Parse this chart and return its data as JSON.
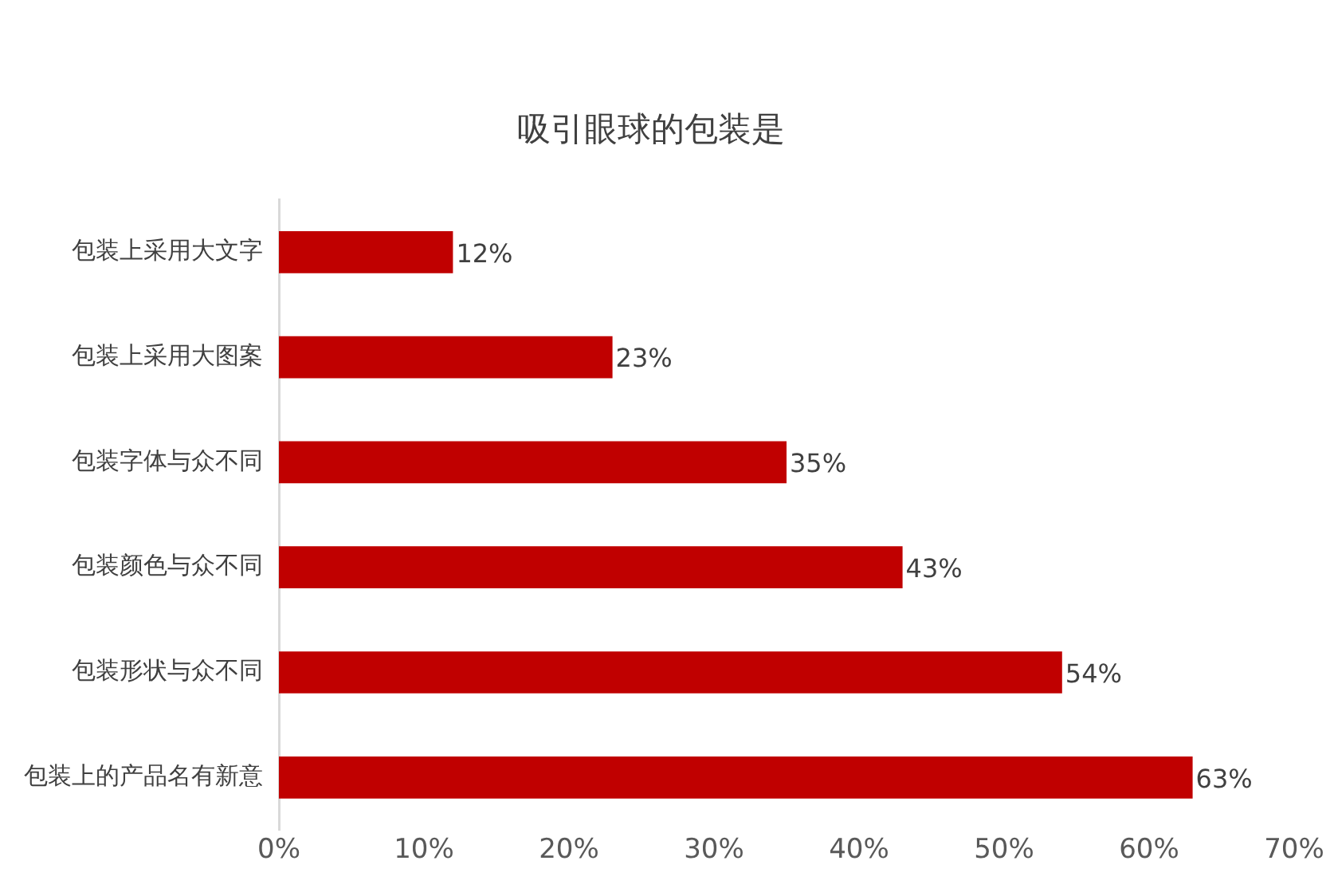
{
  "chart_data": {
    "type": "bar",
    "orientation": "horizontal",
    "title": "吸引眼球的包装是",
    "categories": [
      "包装上采用大文字",
      "包装上采用大图案",
      "包装字体与众不同",
      "包装颜色与众不同",
      "包装形状与众不同",
      "包装上的产品名有新意"
    ],
    "values": [
      12,
      23,
      35,
      43,
      54,
      63
    ],
    "color": "#c00000",
    "value_labels": [
      "12%",
      "23%",
      "35%",
      "43%",
      "54%",
      "63%"
    ],
    "xlim": [
      0,
      70
    ],
    "xticks": [
      {
        "value": 0,
        "label": "0%"
      },
      {
        "value": 10,
        "label": "10%"
      },
      {
        "value": 20,
        "label": "20%"
      },
      {
        "value": 30,
        "label": "30%"
      },
      {
        "value": 40,
        "label": "40%"
      },
      {
        "value": 50,
        "label": "50%"
      },
      {
        "value": 60,
        "label": "60%"
      },
      {
        "value": 70,
        "label": "70%"
      }
    ],
    "grid": false,
    "legend": false
  }
}
